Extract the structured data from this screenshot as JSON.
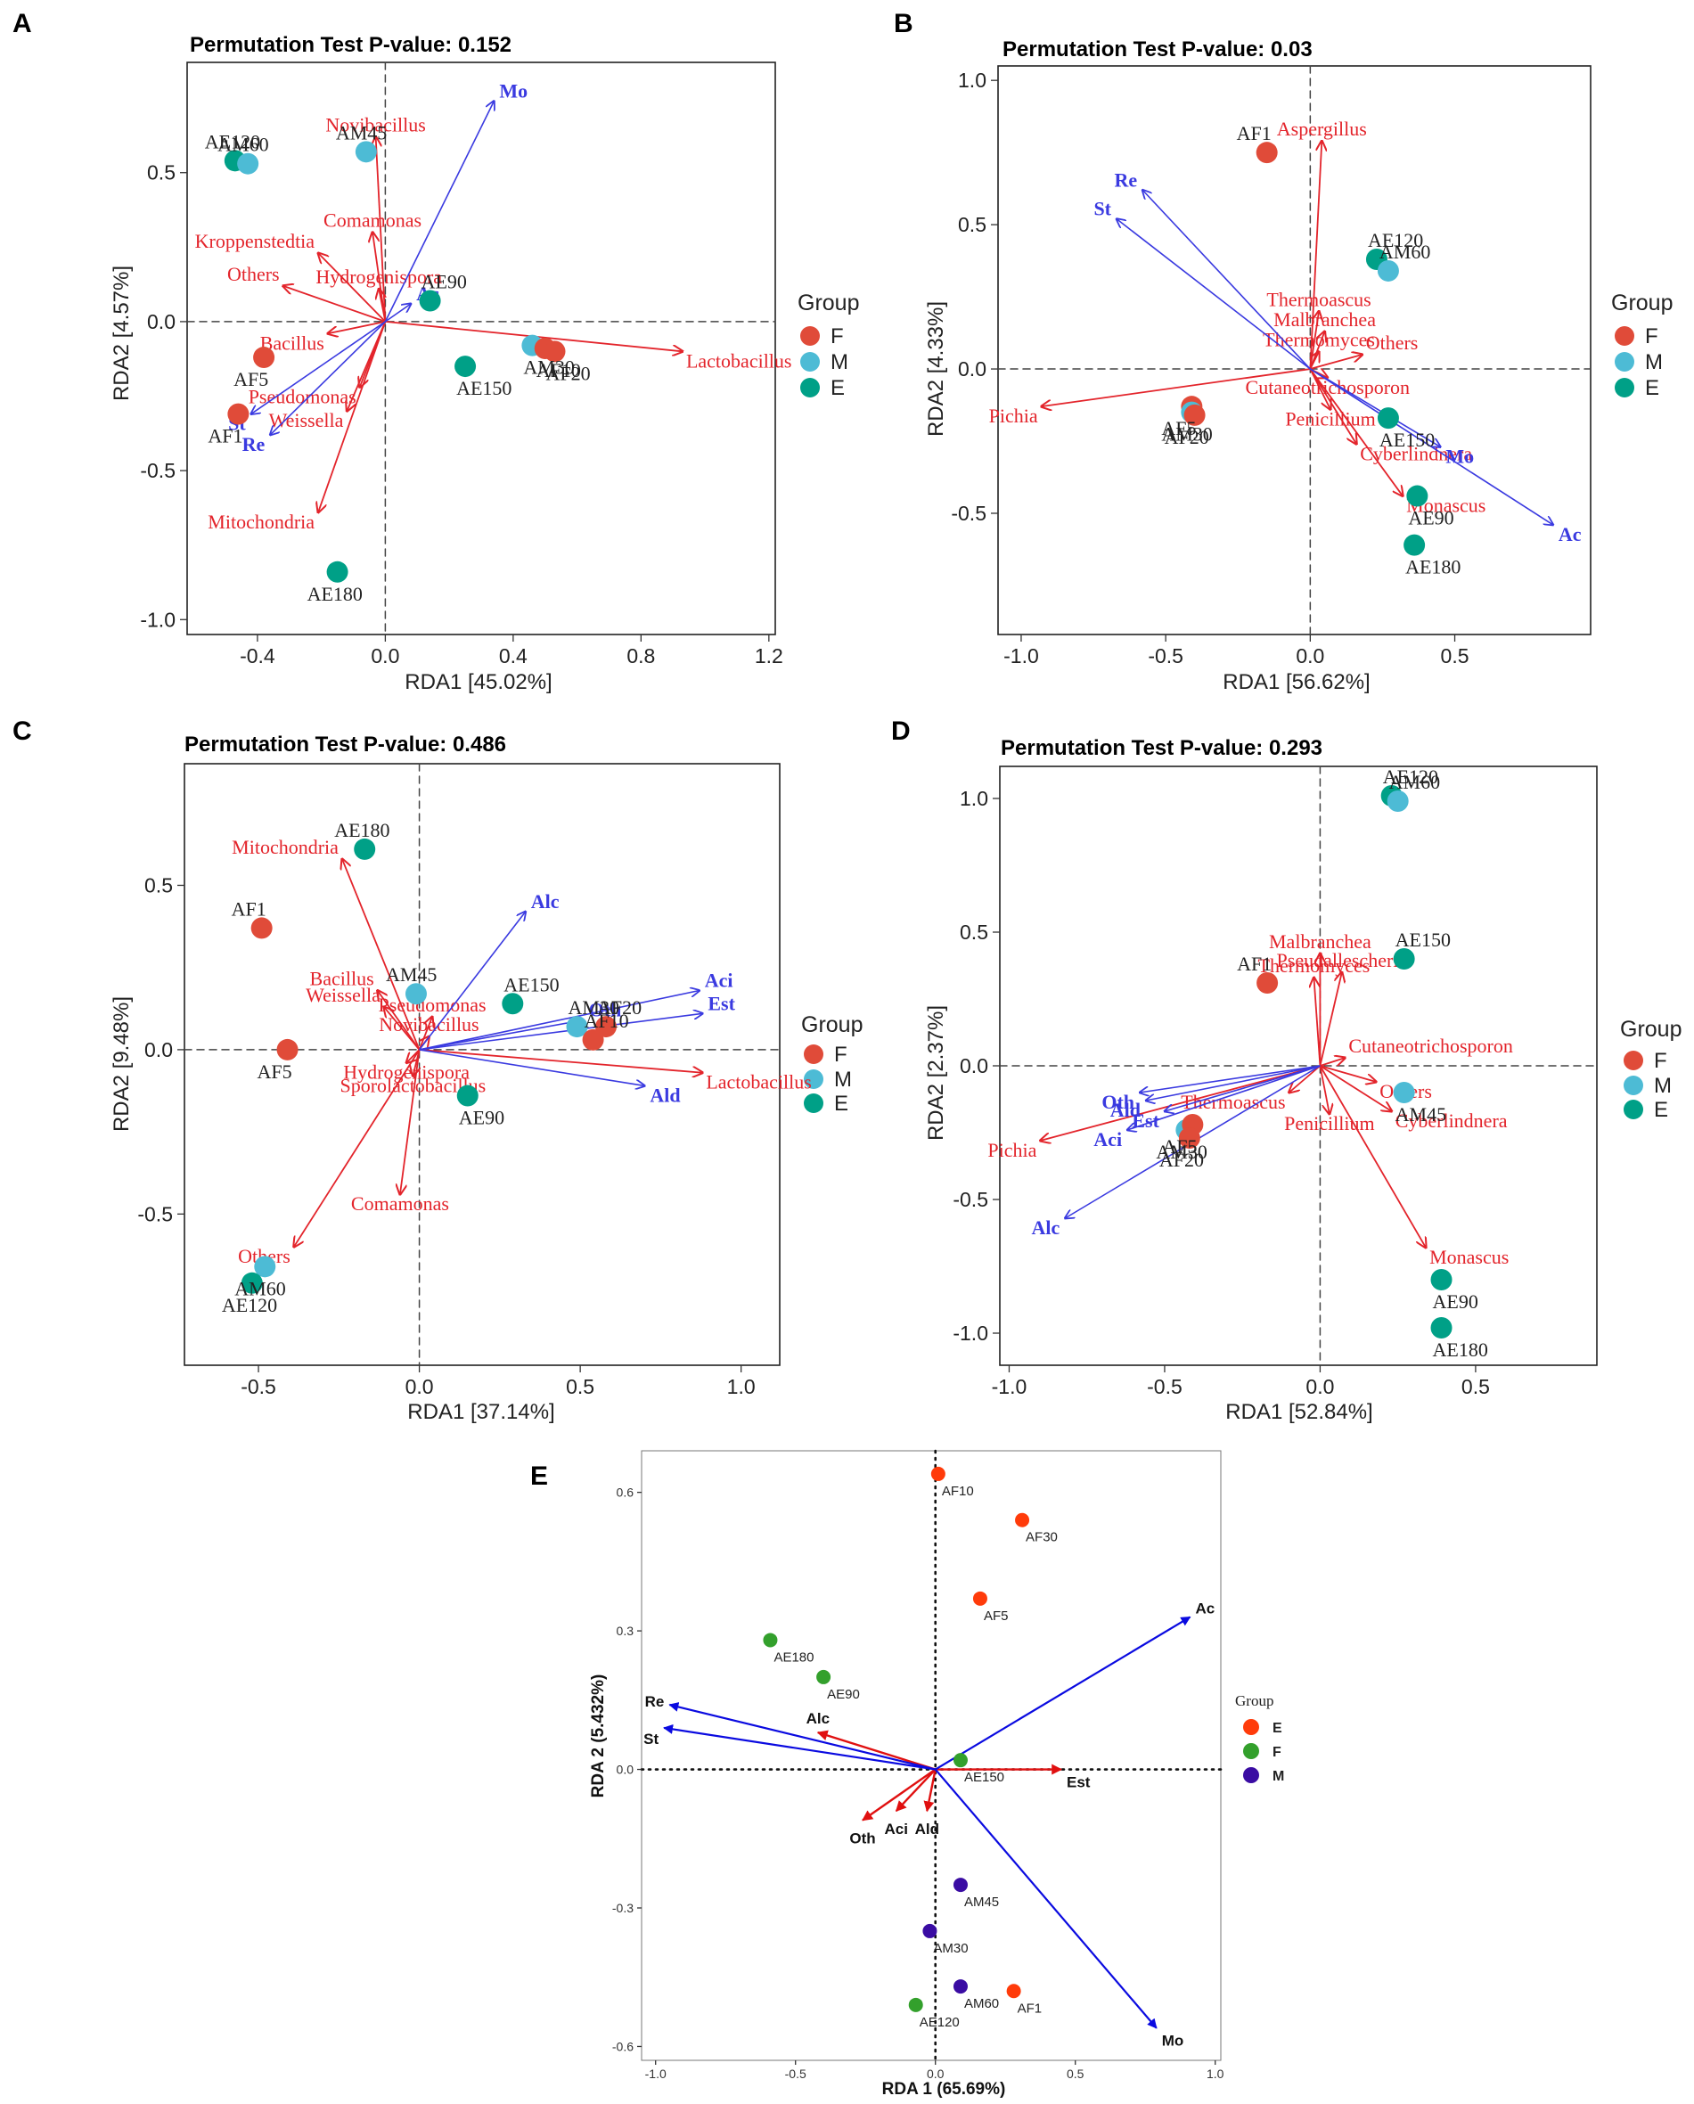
{
  "figure": {
    "panels": [
      {
        "label": "A",
        "title": "Permutation Test P-value: 0.152",
        "xlabel": "RDA1 [45.02%]",
        "ylabel": "RDA2 [4.57%]",
        "legend": {
          "title": "Group",
          "items": [
            [
              "F",
              "#e04b39"
            ],
            [
              "M",
              "#4dbbd5"
            ],
            [
              "E",
              "#00a087"
            ]
          ]
        }
      },
      {
        "label": "B",
        "title": "Permutation Test P-value: 0.03",
        "xlabel": "RDA1 [56.62%]",
        "ylabel": "RDA2 [4.33%]",
        "legend": {
          "title": "Group",
          "items": [
            [
              "F",
              "#e04b39"
            ],
            [
              "M",
              "#4dbbd5"
            ],
            [
              "E",
              "#00a087"
            ]
          ]
        }
      },
      {
        "label": "C",
        "title": "Permutation Test P-value: 0.486",
        "xlabel": "RDA1 [37.14%]",
        "ylabel": "RDA2 [9.48%]",
        "legend": {
          "title": "Group",
          "items": [
            [
              "F",
              "#e04b39"
            ],
            [
              "M",
              "#4dbbd5"
            ],
            [
              "E",
              "#00a087"
            ]
          ]
        }
      },
      {
        "label": "D",
        "title": "Permutation Test P-value: 0.293",
        "xlabel": "RDA1 [52.84%]",
        "ylabel": "RDA2 [2.37%]",
        "legend": {
          "title": "Group",
          "items": [
            [
              "F",
              "#e04b39"
            ],
            [
              "M",
              "#4dbbd5"
            ],
            [
              "E",
              "#00a087"
            ]
          ]
        }
      },
      {
        "label": "E",
        "title": "",
        "xlabel": "RDA 1 (65.69%)",
        "ylabel": "RDA 2 (5.432%)",
        "legend": {
          "title": "Group",
          "items": [
            [
              "E",
              "#ff3b0a"
            ],
            [
              "F",
              "#33a02c"
            ],
            [
              "M",
              "#3a0ca3"
            ]
          ]
        }
      }
    ]
  },
  "chart_data": [
    {
      "type": "scatter",
      "panel": "A",
      "title": "Permutation Test P-value: 0.152",
      "xlabel": "RDA1 [45.02%]",
      "ylabel": "RDA2 [4.57%]",
      "xlim": [
        -0.62,
        1.22
      ],
      "ylim": [
        -1.05,
        0.87
      ],
      "xticks": [
        -0.4,
        0.0,
        0.4,
        0.8,
        1.2
      ],
      "yticks": [
        -1.0,
        -0.5,
        0.0,
        0.5
      ],
      "xtick_labels": [
        "-0.4",
        "0.0",
        "0.4",
        "0.8",
        "1.2"
      ],
      "ytick_labels": [
        "-1.0",
        "-0.5",
        "0.0",
        "0.5"
      ],
      "points": [
        {
          "label": "AE120",
          "group": "E",
          "x": -0.47,
          "y": 0.54
        },
        {
          "label": "AM60",
          "group": "M",
          "x": -0.43,
          "y": 0.53
        },
        {
          "label": "AM45",
          "group": "M",
          "x": -0.06,
          "y": 0.57
        },
        {
          "label": "AE90",
          "group": "E",
          "x": 0.14,
          "y": 0.07
        },
        {
          "label": "AF5",
          "group": "F",
          "x": -0.38,
          "y": -0.12
        },
        {
          "label": "AF1",
          "group": "F",
          "x": -0.46,
          "y": -0.31
        },
        {
          "label": "AM30",
          "group": "M",
          "x": 0.46,
          "y": -0.08
        },
        {
          "label": "AF10",
          "group": "F",
          "x": 0.5,
          "y": -0.09
        },
        {
          "label": "AF20",
          "group": "F",
          "x": 0.53,
          "y": -0.1
        },
        {
          "label": "AE150",
          "group": "E",
          "x": 0.25,
          "y": -0.15
        },
        {
          "label": "AE180",
          "group": "E",
          "x": -0.15,
          "y": -0.84
        }
      ],
      "species": [
        {
          "name": "Novibacillus",
          "x": -0.03,
          "y": 0.62
        },
        {
          "name": "Comamonas",
          "x": -0.04,
          "y": 0.3
        },
        {
          "name": "Kroppenstedtia",
          "x": -0.21,
          "y": 0.23
        },
        {
          "name": "Others",
          "x": -0.32,
          "y": 0.12
        },
        {
          "name": "Hydrogenispora",
          "x": -0.02,
          "y": 0.11
        },
        {
          "name": "Bacillus",
          "x": -0.18,
          "y": -0.04
        },
        {
          "name": "Pseudomonas",
          "x": -0.08,
          "y": -0.22
        },
        {
          "name": "Weissella",
          "x": -0.12,
          "y": -0.3
        },
        {
          "name": "Lactobacillus",
          "x": 0.93,
          "y": -0.1
        },
        {
          "name": "Mitochondria",
          "x": -0.21,
          "y": -0.64
        }
      ],
      "env": [
        {
          "name": "Mo",
          "x": 0.34,
          "y": 0.74
        },
        {
          "name": "Ac",
          "x": 0.08,
          "y": 0.06
        },
        {
          "name": "St",
          "x": -0.42,
          "y": -0.31
        },
        {
          "name": "Re",
          "x": -0.36,
          "y": -0.38
        }
      ]
    },
    {
      "type": "scatter",
      "panel": "B",
      "title": "Permutation Test P-value: 0.03",
      "xlabel": "RDA1 [56.62%]",
      "ylabel": "RDA2 [4.33%]",
      "xlim": [
        -1.08,
        0.97
      ],
      "ylim": [
        -0.92,
        1.05
      ],
      "xticks": [
        -1.0,
        -0.5,
        0.0,
        0.5
      ],
      "yticks": [
        -0.5,
        0.0,
        0.5,
        1.0
      ],
      "xtick_labels": [
        "-1.0",
        "-0.5",
        "0.0",
        "0.5"
      ],
      "ytick_labels": [
        "-0.5",
        "0.0",
        "0.5",
        "1.0"
      ],
      "points": [
        {
          "label": "AF1",
          "group": "F",
          "x": -0.15,
          "y": 0.75
        },
        {
          "label": "AE120",
          "group": "E",
          "x": 0.23,
          "y": 0.38
        },
        {
          "label": "AM60",
          "group": "M",
          "x": 0.27,
          "y": 0.34
        },
        {
          "label": "AF5",
          "group": "F",
          "x": -0.41,
          "y": -0.13
        },
        {
          "label": "AM30",
          "group": "M",
          "x": -0.41,
          "y": -0.15
        },
        {
          "label": "AF20",
          "group": "F",
          "x": -0.4,
          "y": -0.16
        },
        {
          "label": "AE150",
          "group": "E",
          "x": 0.27,
          "y": -0.17
        },
        {
          "label": "AE90",
          "group": "E",
          "x": 0.37,
          "y": -0.44
        },
        {
          "label": "AE180",
          "group": "E",
          "x": 0.36,
          "y": -0.61
        }
      ],
      "species": [
        {
          "name": "Aspergillus",
          "x": 0.04,
          "y": 0.79
        },
        {
          "name": "Thermoascus",
          "x": 0.03,
          "y": 0.2
        },
        {
          "name": "Malbranchea",
          "x": 0.05,
          "y": 0.13
        },
        {
          "name": "Thermomyces",
          "x": 0.03,
          "y": 0.06
        },
        {
          "name": "Others",
          "x": 0.18,
          "y": 0.05
        },
        {
          "name": "Cutaneotrichosporon",
          "x": 0.06,
          "y": -0.03
        },
        {
          "name": "Penicillium",
          "x": 0.07,
          "y": -0.14
        },
        {
          "name": "Cyberlindnera",
          "x": 0.16,
          "y": -0.26
        },
        {
          "name": "Monascus",
          "x": 0.32,
          "y": -0.44
        },
        {
          "name": "Pichia",
          "x": -0.93,
          "y": -0.13
        }
      ],
      "env": [
        {
          "name": "Re",
          "x": -0.58,
          "y": 0.62
        },
        {
          "name": "St",
          "x": -0.67,
          "y": 0.52
        },
        {
          "name": "Mo",
          "x": 0.45,
          "y": -0.27
        },
        {
          "name": "Ac",
          "x": 0.84,
          "y": -0.54
        }
      ]
    },
    {
      "type": "scatter",
      "panel": "C",
      "title": "Permutation Test P-value: 0.486",
      "xlabel": "RDA1 [37.14%]",
      "ylabel": "RDA2 [9.48%]",
      "xlim": [
        -0.73,
        1.12
      ],
      "ylim": [
        -0.96,
        0.87
      ],
      "xticks": [
        -0.5,
        0.0,
        0.5,
        1.0
      ],
      "yticks": [
        -0.5,
        0.0,
        0.5
      ],
      "xtick_labels": [
        "-0.5",
        "0.0",
        "0.5",
        "1.0"
      ],
      "ytick_labels": [
        "-0.5",
        "0.0",
        "0.5"
      ],
      "points": [
        {
          "label": "AE180",
          "group": "E",
          "x": -0.17,
          "y": 0.61
        },
        {
          "label": "AF1",
          "group": "F",
          "x": -0.49,
          "y": 0.37
        },
        {
          "label": "AM45",
          "group": "M",
          "x": -0.01,
          "y": 0.17
        },
        {
          "label": "AE150",
          "group": "E",
          "x": 0.29,
          "y": 0.14
        },
        {
          "label": "AM30",
          "group": "M",
          "x": 0.49,
          "y": 0.07
        },
        {
          "label": "AF20",
          "group": "F",
          "x": 0.58,
          "y": 0.07
        },
        {
          "label": "AF10",
          "group": "F",
          "x": 0.54,
          "y": 0.03
        },
        {
          "label": "AF5",
          "group": "F",
          "x": -0.41,
          "y": 0.0
        },
        {
          "label": "AE90",
          "group": "E",
          "x": 0.15,
          "y": -0.14
        },
        {
          "label": "AM60",
          "group": "M",
          "x": -0.48,
          "y": -0.66
        },
        {
          "label": "AE120",
          "group": "E",
          "x": -0.52,
          "y": -0.71
        }
      ],
      "species": [
        {
          "name": "Mitochondria",
          "x": -0.24,
          "y": 0.58
        },
        {
          "name": "Bacillus",
          "x": -0.13,
          "y": 0.18
        },
        {
          "name": "Weissella",
          "x": -0.11,
          "y": 0.13
        },
        {
          "name": "Pseudomonas",
          "x": 0.04,
          "y": 0.1
        },
        {
          "name": "Novibacillus",
          "x": 0.03,
          "y": 0.04
        },
        {
          "name": "Hydrogenispora",
          "x": -0.04,
          "y": -0.04
        },
        {
          "name": "Sporolactobacillus",
          "x": -0.02,
          "y": -0.08
        },
        {
          "name": "Comamonas",
          "x": -0.06,
          "y": -0.44
        },
        {
          "name": "Others",
          "x": -0.39,
          "y": -0.6
        },
        {
          "name": "Lactobacillus",
          "x": 0.88,
          "y": -0.07
        }
      ],
      "env": [
        {
          "name": "Alc",
          "x": 0.33,
          "y": 0.42
        },
        {
          "name": "Aci",
          "x": 0.87,
          "y": 0.18
        },
        {
          "name": "Est",
          "x": 0.88,
          "y": 0.11
        },
        {
          "name": "Oth",
          "x": 0.51,
          "y": 0.09
        },
        {
          "name": "Ald",
          "x": 0.7,
          "y": -0.11
        }
      ]
    },
    {
      "type": "scatter",
      "panel": "D",
      "title": "Permutation Test P-value: 0.293",
      "xlabel": "RDA1 [52.84%]",
      "ylabel": "RDA2 [2.37%]",
      "xlim": [
        -1.03,
        0.89
      ],
      "ylim": [
        -1.12,
        1.12
      ],
      "xticks": [
        -1.0,
        -0.5,
        0.0,
        0.5
      ],
      "yticks": [
        -1.0,
        -0.5,
        0.0,
        0.5,
        1.0
      ],
      "xtick_labels": [
        "-1.0",
        "-0.5",
        "0.0",
        "0.5"
      ],
      "ytick_labels": [
        "-1.0",
        "-0.5",
        "0.0",
        "0.5",
        "1.0"
      ],
      "points": [
        {
          "label": "AE120",
          "group": "E",
          "x": 0.23,
          "y": 1.01
        },
        {
          "label": "AM60",
          "group": "M",
          "x": 0.25,
          "y": 0.99
        },
        {
          "label": "AE150",
          "group": "E",
          "x": 0.27,
          "y": 0.4
        },
        {
          "label": "AF1",
          "group": "F",
          "x": -0.17,
          "y": 0.31
        },
        {
          "label": "AM45",
          "group": "M",
          "x": 0.27,
          "y": -0.1
        },
        {
          "label": "AM30",
          "group": "M",
          "x": -0.43,
          "y": -0.24
        },
        {
          "label": "AF5",
          "group": "F",
          "x": -0.41,
          "y": -0.22
        },
        {
          "label": "AF20",
          "group": "F",
          "x": -0.42,
          "y": -0.27
        },
        {
          "label": "AE90",
          "group": "E",
          "x": 0.39,
          "y": -0.8
        },
        {
          "label": "AE180",
          "group": "E",
          "x": 0.39,
          "y": -0.98
        }
      ],
      "species": [
        {
          "name": "Malbranchea",
          "x": 0.0,
          "y": 0.42
        },
        {
          "name": "Thermomyces",
          "x": -0.02,
          "y": 0.33
        },
        {
          "name": "Pseudallescheria",
          "x": 0.07,
          "y": 0.35
        },
        {
          "name": "Cutaneotrichosporon",
          "x": 0.08,
          "y": 0.03
        },
        {
          "name": "Thermoascus",
          "x": -0.1,
          "y": -0.1
        },
        {
          "name": "Others",
          "x": 0.18,
          "y": -0.06
        },
        {
          "name": "Penicillium",
          "x": 0.03,
          "y": -0.18
        },
        {
          "name": "Cyberlindnera",
          "x": 0.23,
          "y": -0.17
        },
        {
          "name": "Monascus",
          "x": 0.34,
          "y": -0.68
        },
        {
          "name": "Pichia",
          "x": -0.9,
          "y": -0.28
        }
      ],
      "env": [
        {
          "name": "Oth",
          "x": -0.58,
          "y": -0.1
        },
        {
          "name": "Ald",
          "x": -0.56,
          "y": -0.13
        },
        {
          "name": "Est",
          "x": -0.5,
          "y": -0.17
        },
        {
          "name": "Aci",
          "x": -0.62,
          "y": -0.24
        },
        {
          "name": "Alc",
          "x": -0.82,
          "y": -0.57
        }
      ]
    },
    {
      "type": "scatter",
      "panel": "E",
      "title": "",
      "xlabel": "RDA 1 (65.69%)",
      "ylabel": "RDA 2 (5.432%)",
      "xlim": [
        -1.05,
        1.02
      ],
      "ylim": [
        -0.63,
        0.69
      ],
      "xticks": [
        -1.0,
        -0.5,
        0.0,
        0.5,
        1.0
      ],
      "yticks": [
        -0.6,
        -0.3,
        0.0,
        0.3,
        0.6
      ],
      "xtick_labels": [
        "-1.0",
        "-0.5",
        "0.0",
        "0.5",
        "1.0"
      ],
      "ytick_labels": [
        "-0.6",
        "-0.3",
        "0.0",
        "0.3",
        "0.6"
      ],
      "points": [
        {
          "label": "AF10",
          "group": "E",
          "x": 0.01,
          "y": 0.64
        },
        {
          "label": "AF30",
          "group": "E",
          "x": 0.31,
          "y": 0.54
        },
        {
          "label": "AF5",
          "group": "E",
          "x": 0.16,
          "y": 0.37
        },
        {
          "label": "AE180",
          "group": "F",
          "x": -0.59,
          "y": 0.28
        },
        {
          "label": "AE90",
          "group": "F",
          "x": -0.4,
          "y": 0.2
        },
        {
          "label": "AE150",
          "group": "F",
          "x": 0.09,
          "y": 0.02
        },
        {
          "label": "AM45",
          "group": "M",
          "x": 0.09,
          "y": -0.25
        },
        {
          "label": "AM30",
          "group": "M",
          "x": -0.02,
          "y": -0.35
        },
        {
          "label": "AM60",
          "group": "M",
          "x": 0.09,
          "y": -0.47
        },
        {
          "label": "AF1",
          "group": "E",
          "x": 0.28,
          "y": -0.48
        },
        {
          "label": "AE120",
          "group": "F",
          "x": -0.07,
          "y": -0.51
        }
      ],
      "vectors_blue": [
        {
          "name": "Ac",
          "x": 0.91,
          "y": 0.33
        },
        {
          "name": "Mo",
          "x": 0.79,
          "y": -0.56
        },
        {
          "name": "Re",
          "x": -0.95,
          "y": 0.14
        },
        {
          "name": "St",
          "x": -0.97,
          "y": 0.09
        }
      ],
      "vectors_red": [
        {
          "name": "Alc",
          "x": -0.42,
          "y": 0.08
        },
        {
          "name": "Est",
          "x": 0.45,
          "y": 0.0
        },
        {
          "name": "Oth",
          "x": -0.26,
          "y": -0.11
        },
        {
          "name": "Aci",
          "x": -0.14,
          "y": -0.09
        },
        {
          "name": "Ald",
          "x": -0.03,
          "y": -0.09
        }
      ]
    }
  ]
}
